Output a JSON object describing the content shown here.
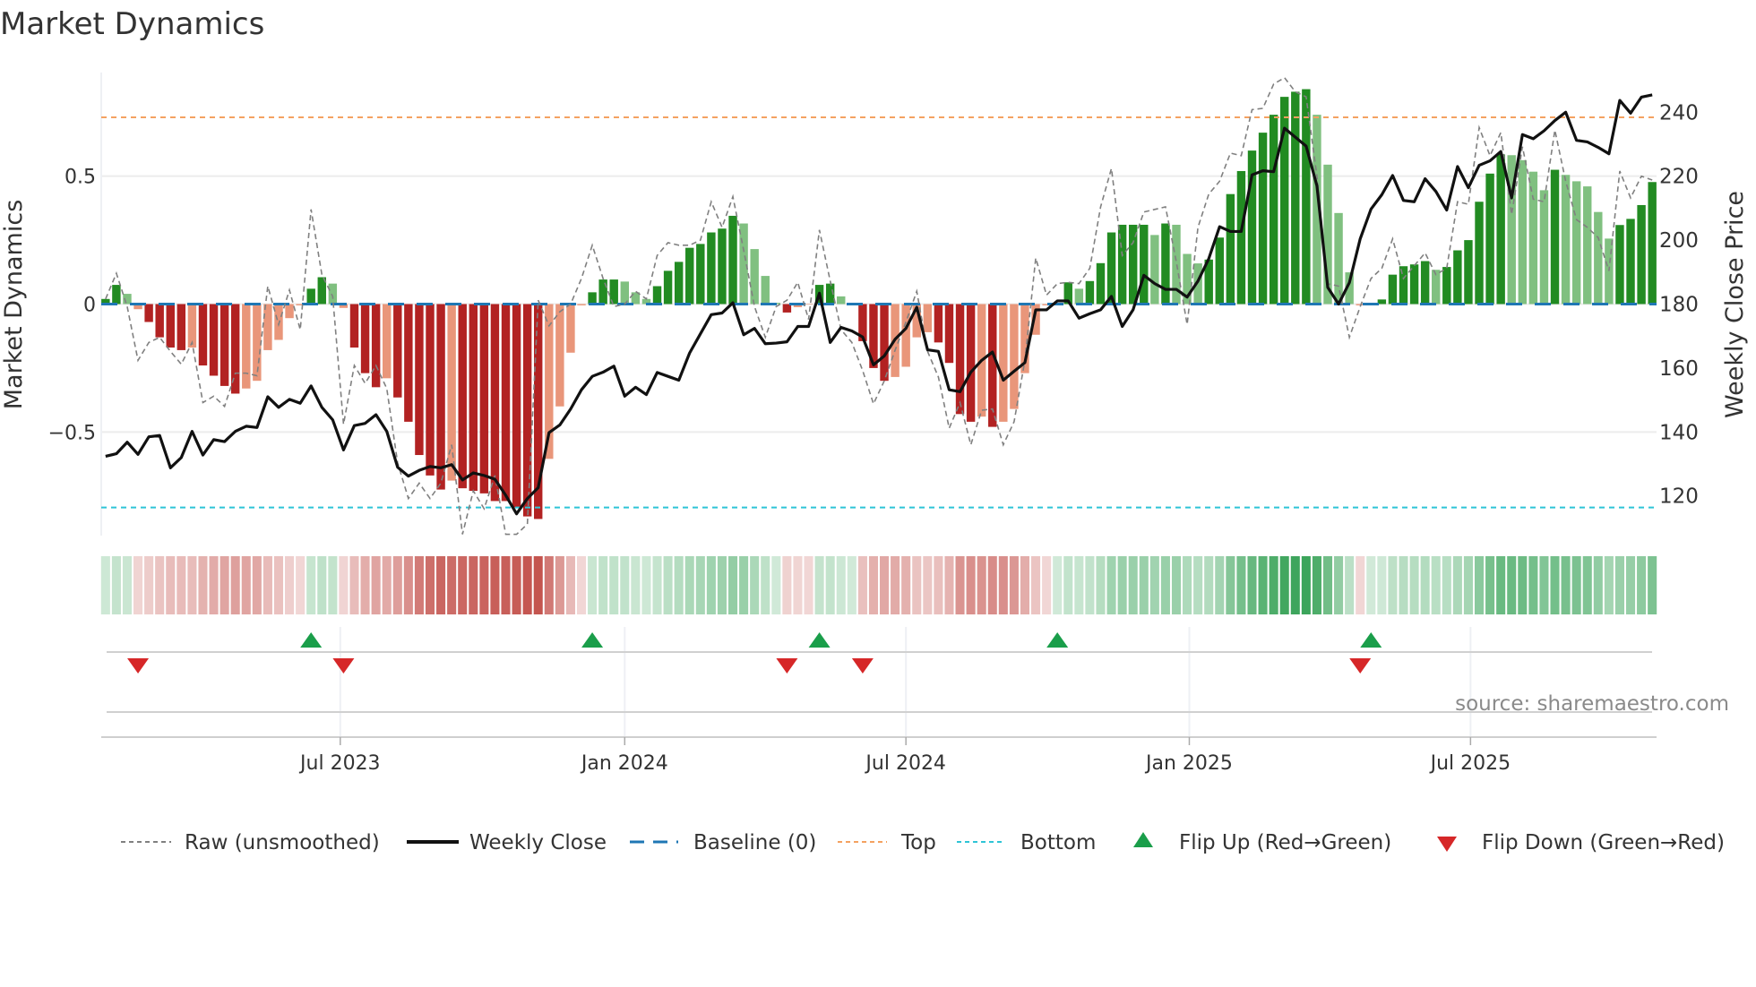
{
  "title": "Market Dynamics",
  "source": "source: sharemaestro.com",
  "colors": {
    "bull_strong": "#228b22",
    "bull_fading": "#80c080",
    "bear_strong": "#b22222",
    "bear_fading": "#e9967a",
    "raw": "#808080",
    "close": "#111111",
    "baseline": "#1f77b4",
    "top": "#f4a261",
    "bottom": "#2ec4d6",
    "flip_up": "#1a9e4a",
    "flip_down": "#d62728"
  },
  "legend": {
    "raw": "Raw (unsmoothed)",
    "close": "Weekly Close",
    "baseline": "Baseline (0)",
    "top": "Top",
    "bottom": "Bottom",
    "flip_up": "Flip Up (Red→Green)",
    "flip_down": "Flip Down (Green→Red)"
  },
  "chart_data": {
    "type": "bar",
    "title": "Market Dynamics",
    "ylabel": "Market Dynamics",
    "y2label": "Weekly Close Price",
    "ylim": [
      -0.905,
      0.905
    ],
    "y2lim": [
      107.6,
      252.4
    ],
    "yticks": [
      {
        "v": 0.5,
        "label": "0.5"
      },
      {
        "v": 0,
        "label": "0"
      },
      {
        "v": -0.5,
        "label": "−0.5"
      }
    ],
    "y2ticks": [
      {
        "v": 240,
        "label": "240"
      },
      {
        "v": 220,
        "label": "220"
      },
      {
        "v": 200,
        "label": "200"
      },
      {
        "v": 180,
        "label": "180"
      },
      {
        "v": 160,
        "label": "160"
      },
      {
        "v": 140,
        "label": "140"
      },
      {
        "v": 120,
        "label": "120"
      }
    ],
    "xticks": [
      {
        "week": 21.7,
        "label": "Jul 2023"
      },
      {
        "week": 48.0,
        "label": "Jan 2024"
      },
      {
        "week": 74.0,
        "label": "Jul 2024"
      },
      {
        "week": 100.2,
        "label": "Jan 2025"
      },
      {
        "week": 126.2,
        "label": "Jul 2025"
      }
    ],
    "xlim": [
      -0.4,
      143.4
    ],
    "top_level": 0.73,
    "bottom_level": -0.795,
    "baseline": 0,
    "grid": true,
    "legend_placement": "bottom",
    "smoothed": [
      0.02,
      0.075,
      0.04,
      -0.02,
      -0.07,
      -0.13,
      -0.17,
      -0.18,
      -0.17,
      -0.24,
      -0.28,
      -0.32,
      -0.35,
      -0.33,
      -0.3,
      -0.18,
      -0.14,
      -0.055,
      -0.005,
      0.06,
      0.105,
      0.08,
      -0.015,
      -0.17,
      -0.27,
      -0.325,
      -0.29,
      -0.365,
      -0.46,
      -0.59,
      -0.67,
      -0.725,
      -0.69,
      -0.72,
      -0.73,
      -0.74,
      -0.77,
      -0.77,
      -0.795,
      -0.83,
      -0.84,
      -0.605,
      -0.4,
      -0.19,
      -0.005,
      0.046,
      0.096,
      0.096,
      0.088,
      0.046,
      0.02,
      0.07,
      0.13,
      0.165,
      0.22,
      0.235,
      0.28,
      0.295,
      0.345,
      0.315,
      0.215,
      0.11,
      0.005,
      -0.033,
      -0.012,
      -0.002,
      0.075,
      0.08,
      0.03,
      0.002,
      -0.145,
      -0.25,
      -0.3,
      -0.285,
      -0.245,
      -0.13,
      -0.11,
      -0.15,
      -0.23,
      -0.43,
      -0.46,
      -0.44,
      -0.48,
      -0.46,
      -0.41,
      -0.27,
      -0.12,
      -0.005,
      0.005,
      0.085,
      0.06,
      0.09,
      0.16,
      0.28,
      0.31,
      0.31,
      0.31,
      0.27,
      0.315,
      0.31,
      0.196,
      0.159,
      0.174,
      0.26,
      0.43,
      0.52,
      0.6,
      0.67,
      0.74,
      0.81,
      0.83,
      0.84,
      0.74,
      0.545,
      0.356,
      0.124,
      -0.005,
      0.002,
      0.018,
      0.115,
      0.148,
      0.155,
      0.168,
      0.134,
      0.145,
      0.21,
      0.25,
      0.4,
      0.51,
      0.585,
      0.582,
      0.5625,
      0.5175,
      0.445,
      0.525,
      0.505,
      0.48,
      0.46,
      0.36,
      0.256,
      0.309,
      0.333,
      0.387,
      0.477
    ],
    "raw": [
      0.02,
      0.12,
      -0.01,
      -0.22,
      -0.15,
      -0.13,
      -0.185,
      -0.235,
      -0.15,
      -0.385,
      -0.36,
      -0.4,
      -0.27,
      -0.27,
      -0.28,
      0.07,
      -0.08,
      0.055,
      -0.1,
      0.37,
      0.115,
      0.03,
      -0.47,
      -0.24,
      -0.31,
      -0.24,
      -0.33,
      -0.62,
      -0.76,
      -0.7,
      -0.76,
      -0.7,
      -0.55,
      -0.9,
      -0.73,
      -0.8,
      -0.67,
      -0.9,
      -0.9,
      -0.86,
      0.015,
      -0.085,
      -0.03,
      0,
      0.1,
      0.23,
      0.1,
      -0.01,
      0.0,
      0.05,
      0.02,
      0.19,
      0.24,
      0.23,
      0.23,
      0.25,
      0.4,
      0.3,
      0.42,
      0.21,
      -0.01,
      -0.13,
      -0.01,
      0.015,
      0.085,
      -0.06,
      0.29,
      0.09,
      -0.1,
      -0.15,
      -0.26,
      -0.39,
      -0.3,
      -0.18,
      -0.07,
      0.05,
      -0.185,
      -0.285,
      -0.485,
      -0.385,
      -0.55,
      -0.415,
      -0.41,
      -0.55,
      -0.46,
      -0.22,
      0.18,
      0.035,
      0.08,
      0.085,
      0.08,
      0.14,
      0.38,
      0.53,
      0.19,
      0.24,
      0.36,
      0.37,
      0.38,
      0.165,
      -0.08,
      0.3,
      0.43,
      0.48,
      0.59,
      0.58,
      0.76,
      0.765,
      0.86,
      0.885,
      0.83,
      0.81,
      0.5,
      0.08,
      0.07,
      -0.13,
      -0.01,
      0.1,
      0.14,
      0.255,
      0.1,
      0.15,
      0.2,
      0.115,
      0.14,
      0.4,
      0.39,
      0.69,
      0.58,
      0.67,
      0.35,
      0.615,
      0.41,
      0.4,
      0.68,
      0.48,
      0.33,
      0.3,
      0.26,
      0.13,
      0.52,
      0.415,
      0.5,
      0.485
    ],
    "close": [
      132.4,
      133.2,
      136.8,
      133,
      138.5,
      138.9,
      128.8,
      132,
      140.2,
      132.8,
      137.6,
      137,
      140.2,
      141.8,
      141.4,
      151,
      147.7,
      150.2,
      149,
      154.4,
      147.7,
      143.8,
      134.4,
      142,
      142.7,
      145.4,
      140.2,
      129,
      126.2,
      128,
      129.2,
      128.8,
      129.8,
      125,
      127.2,
      126.4,
      125.2,
      120.2,
      114.4,
      119.2,
      122.6,
      139.8,
      142.2,
      147.2,
      153.2,
      157.4,
      158.7,
      160.6,
      151.2,
      154,
      151.7,
      158.6,
      157.4,
      156.2,
      164.7,
      170.7,
      176.7,
      177.2,
      180.4,
      170.4,
      172.4,
      167.6,
      167.8,
      168.2,
      173,
      173,
      183.4,
      168,
      172.7,
      171.6,
      169.7,
      161,
      163.8,
      169,
      172.4,
      179,
      165.7,
      165.2,
      153.2,
      152.6,
      158.7,
      162.4,
      165,
      156.2,
      159,
      161.7,
      178.2,
      178.2,
      181,
      181,
      175.6,
      177,
      178.2,
      182.4,
      173,
      178.2,
      189,
      186.4,
      184.6,
      184.6,
      182.2,
      187.2,
      194.2,
      204.2,
      202.7,
      202.7,
      220.4,
      221.7,
      221.4,
      235,
      232.2,
      229.4,
      217,
      185.2,
      180,
      186.7,
      200.4,
      209.7,
      214.2,
      220.2,
      212.4,
      212,
      219.2,
      215.2,
      209.4,
      223,
      216.4,
      223.4,
      224.8,
      227.7,
      213.2,
      233,
      231.7,
      234.2,
      237.4,
      240,
      231.2,
      230.7,
      229,
      227,
      243.7,
      239.7,
      244.7,
      245.4
    ],
    "flip_up_weeks": [
      19,
      45,
      66,
      88,
      117
    ],
    "flip_down_weeks": [
      3,
      22,
      63,
      70,
      116
    ]
  }
}
